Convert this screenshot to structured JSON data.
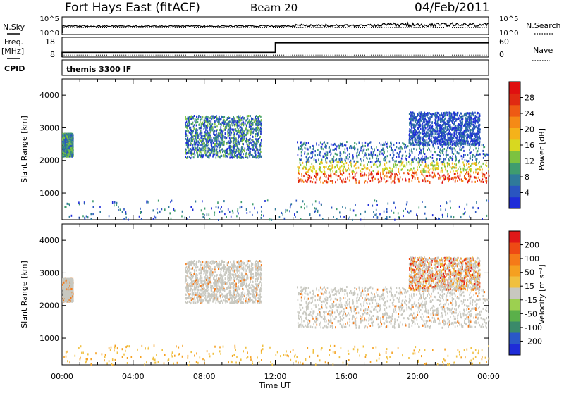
{
  "header": {
    "title": "Fort Hays East (fitACF)",
    "beam": "Beam 20",
    "date": "04/Feb/2011"
  },
  "side_labels": {
    "nsky": "N.Sky",
    "freq": "Freq.",
    "mhz": "[MHz]",
    "cpid": "CPID",
    "nsearch": "N.Search",
    "nave": "Nave",
    "cpid_text": "themis 3300 IF"
  },
  "noise_strip": {
    "left_ticks": [
      "10^5",
      "10^0"
    ],
    "right_ticks": [
      "10^5",
      "10^0"
    ]
  },
  "freq_strip": {
    "left_ticks": [
      "18",
      "8"
    ],
    "right_ticks": [
      "60",
      "0"
    ],
    "freq_mhz": [
      {
        "t": 0.0,
        "v": 10.4
      },
      {
        "t": 12.0,
        "v": 10.4
      },
      {
        "t": 12.0,
        "v": 15.2
      },
      {
        "t": 24.0,
        "v": 15.2
      }
    ],
    "nave": [
      {
        "t": 0.0,
        "v": 7
      },
      {
        "t": 24.0,
        "v": 7
      }
    ]
  },
  "chart_data": [
    {
      "type": "heatmap",
      "name": "power",
      "ylabel": "Slant Range [km]",
      "xlabel": "",
      "x_range_hours": [
        0,
        24
      ],
      "ylim": [
        180,
        4500
      ],
      "yticks": [
        1000,
        2000,
        3000,
        4000
      ],
      "colorbar": {
        "label": "Power [dB]",
        "ticks": [
          "28",
          "24",
          "20",
          "16",
          "12",
          "8",
          "4"
        ],
        "colors": [
          "#1e2cd8",
          "#2a55c0",
          "#2f7a9a",
          "#3f9c6e",
          "#7cc240",
          "#d8d820",
          "#f5b21a",
          "#f58a16",
          "#ee5a14",
          "#e02a12",
          "#e01010"
        ]
      },
      "regions": [
        {
          "t0": 0.0,
          "t1": 0.6,
          "r0": 2150,
          "r1": 2850,
          "level": "mid"
        },
        {
          "t0": 6.9,
          "t1": 11.2,
          "r0": 2100,
          "r1": 3400,
          "level": "low-mid"
        },
        {
          "t0": 13.2,
          "t1": 24.0,
          "r0": 1350,
          "r1": 2600,
          "level": "high"
        },
        {
          "t0": 19.5,
          "t1": 23.5,
          "r0": 2500,
          "r1": 3500,
          "level": "low"
        }
      ]
    },
    {
      "type": "heatmap",
      "name": "velocity",
      "ylabel": "Slant Range [km]",
      "xlabel": "Time UT",
      "x_range_hours": [
        0,
        24
      ],
      "ylim": [
        180,
        4500
      ],
      "yticks": [
        1000,
        2000,
        3000,
        4000
      ],
      "colorbar": {
        "label": "Velocity [m s⁻¹]",
        "ticks": [
          "200",
          "100",
          "50",
          "15",
          "-15",
          "-50",
          "-100",
          "-200"
        ],
        "colors": [
          "#1e2cd8",
          "#2a58c8",
          "#3a8a6a",
          "#5ab04a",
          "#9cd050",
          "#c8c8c0",
          "#f0c040",
          "#f5a020",
          "#f57a18",
          "#ee4a14",
          "#e01818"
        ]
      },
      "regions": [
        {
          "t0": 0.0,
          "t1": 0.6,
          "r0": 2150,
          "r1": 2850,
          "level": "near-zero"
        },
        {
          "t0": 6.9,
          "t1": 11.2,
          "r0": 2100,
          "r1": 3400,
          "level": "near-zero"
        },
        {
          "t0": 13.2,
          "t1": 24.0,
          "r0": 1350,
          "r1": 2600,
          "level": "near-zero"
        },
        {
          "t0": 19.5,
          "t1": 23.5,
          "r0": 2500,
          "r1": 3500,
          "level": "mixed"
        }
      ]
    }
  ],
  "time_axis": {
    "label": "Time UT",
    "ticks": [
      "00:00",
      "04:00",
      "08:00",
      "12:00",
      "16:00",
      "20:00",
      "00:00"
    ]
  }
}
